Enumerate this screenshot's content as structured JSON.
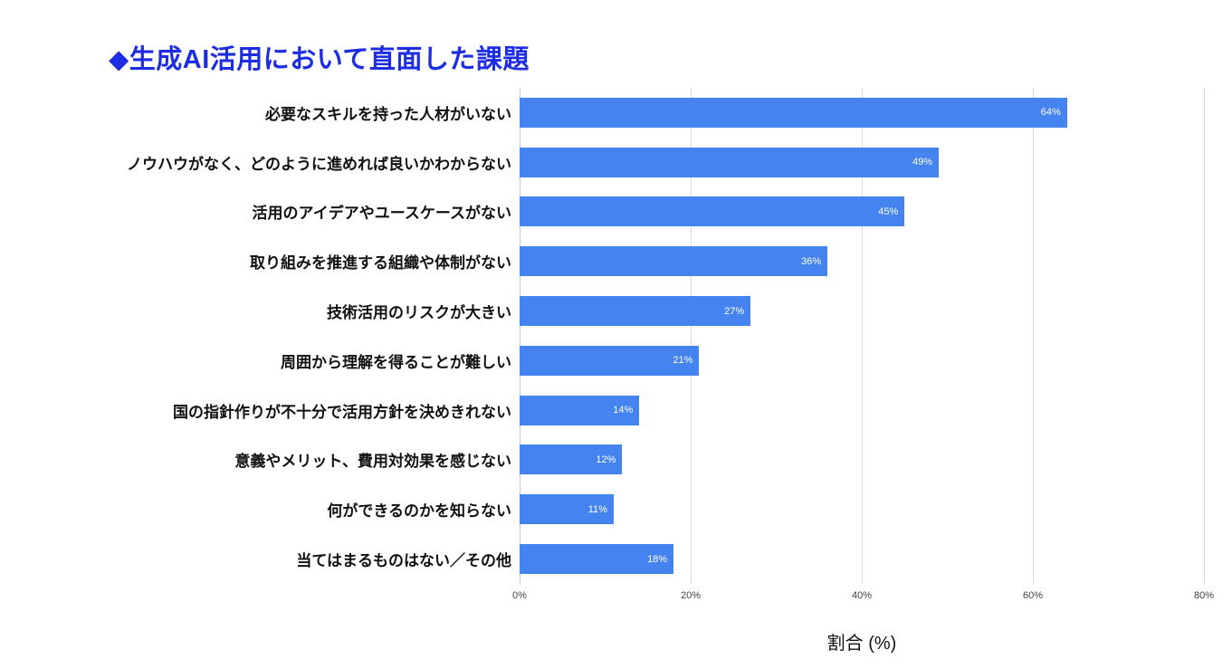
{
  "page": {
    "title": "◆生成AI活用において直面した課題"
  },
  "colors": {
    "title": "#1d2ee2",
    "bar": "#4584f0",
    "grid": "#d9d9d9",
    "value_label_text": "#ffffff"
  },
  "chart_data": {
    "type": "bar",
    "orientation": "horizontal",
    "title": "◆生成AI活用において直面した課題",
    "xlabel": "割合 (%)",
    "ylabel": "",
    "xlim": [
      0,
      80
    ],
    "grid": true,
    "legend": "none",
    "bar_color": "#4584f0",
    "x_ticks": [
      {
        "value": 0,
        "label": "0%"
      },
      {
        "value": 20,
        "label": "20%"
      },
      {
        "value": 40,
        "label": "40%"
      },
      {
        "value": 60,
        "label": "60%"
      },
      {
        "value": 80,
        "label": "80%"
      }
    ],
    "categories": [
      "必要なスキルを持った人材がいない",
      "ノウハウがなく、どのように進めれば良いかわからない",
      "活用のアイデアやユースケースがない",
      "取り組みを推進する組織や体制がない",
      "技術活用のリスクが大きい",
      "周囲から理解を得ることが難しい",
      "国の指針作りが不十分で活用方針を決めきれない",
      "意義やメリット、費用対効果を感じない",
      "何ができるのかを知らない",
      "当てはまるものはない／その他"
    ],
    "values": [
      64,
      49,
      45,
      36,
      27,
      21,
      14,
      12,
      11,
      18
    ],
    "value_labels": [
      "64%",
      "49%",
      "45%",
      "36%",
      "27%",
      "21%",
      "14%",
      "12%",
      "11%",
      "18%"
    ]
  }
}
